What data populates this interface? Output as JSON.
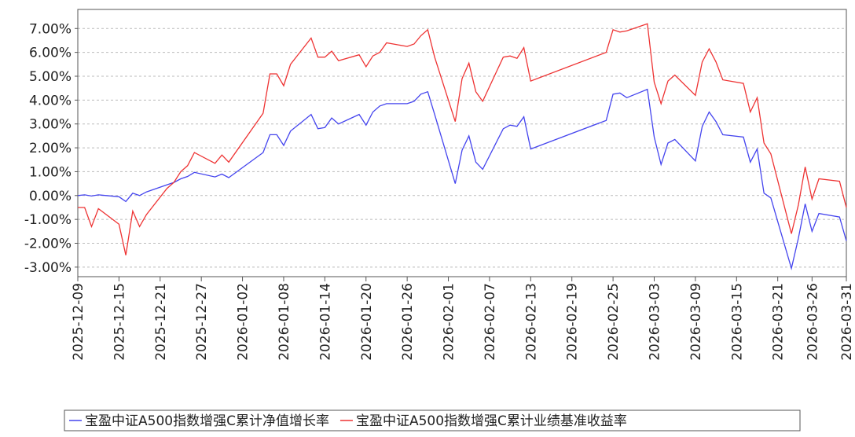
{
  "chart_data": {
    "type": "line",
    "x": [
      "2025-12-09",
      "2025-12-10",
      "2025-12-11",
      "2025-12-12",
      "2025-12-15",
      "2025-12-16",
      "2025-12-17",
      "2025-12-18",
      "2025-12-19",
      "2025-12-22",
      "2025-12-23",
      "2025-12-24",
      "2025-12-25",
      "2025-12-26",
      "2025-12-29",
      "2025-12-30",
      "2025-12-31",
      "2026-01-05",
      "2026-01-06",
      "2026-01-07",
      "2026-01-08",
      "2026-01-09",
      "2026-01-12",
      "2026-01-13",
      "2026-01-14",
      "2026-01-15",
      "2026-01-16",
      "2026-01-19",
      "2026-01-20",
      "2026-01-21",
      "2026-01-22",
      "2026-01-23",
      "2026-01-26",
      "2026-01-27",
      "2026-01-28",
      "2026-01-29",
      "2026-01-30",
      "2026-02-02",
      "2026-02-03",
      "2026-02-04",
      "2026-02-05",
      "2026-02-06",
      "2026-02-09",
      "2026-02-10",
      "2026-02-11",
      "2026-02-12",
      "2026-02-13",
      "2026-02-24",
      "2026-02-25",
      "2026-02-26",
      "2026-02-27",
      "2026-03-02",
      "2026-03-03",
      "2026-03-04",
      "2026-03-05",
      "2026-03-06",
      "2026-03-09",
      "2026-03-10",
      "2026-03-11",
      "2026-03-12",
      "2026-03-13",
      "2026-03-16",
      "2026-03-17",
      "2026-03-18",
      "2026-03-19",
      "2026-03-20",
      "2026-03-23",
      "2026-03-24",
      "2026-03-25",
      "2026-03-26",
      "2026-03-27",
      "2026-03-30",
      "2026-03-31"
    ],
    "series": [
      {
        "name": "宝盈中证A500指数增强C累计净值增长率",
        "color": "#4444ee",
        "values": [
          0,
          0.03,
          -0.02,
          0.03,
          -0.05,
          -0.25,
          0.1,
          0,
          0.15,
          0.45,
          0.55,
          0.7,
          0.8,
          0.97,
          0.78,
          0.9,
          0.75,
          1.8,
          2.55,
          2.55,
          2.1,
          2.7,
          3.4,
          2.8,
          2.85,
          3.25,
          3.0,
          3.4,
          2.95,
          3.5,
          3.75,
          3.85,
          3.85,
          3.95,
          4.25,
          4.35,
          3.4,
          0.5,
          1.9,
          2.5,
          1.4,
          1.1,
          2.8,
          2.95,
          2.9,
          3.3,
          1.95,
          3.15,
          4.25,
          4.3,
          4.1,
          4.45,
          2.45,
          1.3,
          2.2,
          2.35,
          1.45,
          2.9,
          3.5,
          3.1,
          2.55,
          2.45,
          1.4,
          1.95,
          0.1,
          -0.1,
          -3.05,
          -1.8,
          -0.35,
          -1.5,
          -0.75,
          -0.9,
          -1.9
        ]
      },
      {
        "name": "宝盈中证A500指数增强C累计业绩基准收益率",
        "color": "#ee3333",
        "values": [
          -0.5,
          -0.5,
          -1.3,
          -0.55,
          -1.2,
          -2.5,
          -0.65,
          -1.3,
          -0.8,
          0.3,
          0.55,
          1.0,
          1.25,
          1.8,
          1.35,
          1.7,
          1.4,
          3.45,
          5.1,
          5.1,
          4.6,
          5.5,
          6.6,
          5.8,
          5.8,
          6.05,
          5.65,
          5.9,
          5.4,
          5.85,
          6.0,
          6.4,
          6.25,
          6.35,
          6.7,
          6.95,
          5.8,
          3.1,
          4.9,
          5.55,
          4.35,
          3.95,
          5.8,
          5.85,
          5.75,
          6.2,
          4.8,
          6.0,
          6.95,
          6.85,
          6.9,
          7.2,
          4.75,
          3.85,
          4.8,
          5.05,
          4.2,
          5.6,
          6.15,
          5.6,
          4.85,
          4.7,
          3.5,
          4.1,
          2.2,
          1.75,
          -1.6,
          -0.4,
          1.2,
          -0.15,
          0.7,
          0.6,
          -0.5
        ]
      }
    ],
    "xlim": [
      "2025-12-09",
      "2026-03-31"
    ],
    "xticks": [
      "2025-12-09",
      "2025-12-15",
      "2025-12-21",
      "2025-12-27",
      "2026-01-02",
      "2026-01-08",
      "2026-01-14",
      "2026-01-20",
      "2026-01-26",
      "2026-02-01",
      "2026-02-07",
      "2026-02-13",
      "2026-02-19",
      "2026-02-25",
      "2026-03-03",
      "2026-03-09",
      "2026-03-15",
      "2026-03-21",
      "2026-03-26",
      "2026-03-31"
    ],
    "ylim": [
      -3.4,
      7.8
    ],
    "yticks": [
      {
        "value": -3,
        "label": "-3.00%"
      },
      {
        "value": -2,
        "label": "-2.00%"
      },
      {
        "value": -1,
        "label": "-1.00%"
      },
      {
        "value": 0,
        "label": "0.00%"
      },
      {
        "value": 1,
        "label": "1.00%"
      },
      {
        "value": 2,
        "label": "2.00%"
      },
      {
        "value": 3,
        "label": "3.00%"
      },
      {
        "value": 4,
        "label": "4.00%"
      },
      {
        "value": 5,
        "label": "5.00%"
      },
      {
        "value": 6,
        "label": "6.00%"
      },
      {
        "value": 7,
        "label": "7.00%"
      }
    ],
    "grid": true,
    "legend": "bottom"
  }
}
